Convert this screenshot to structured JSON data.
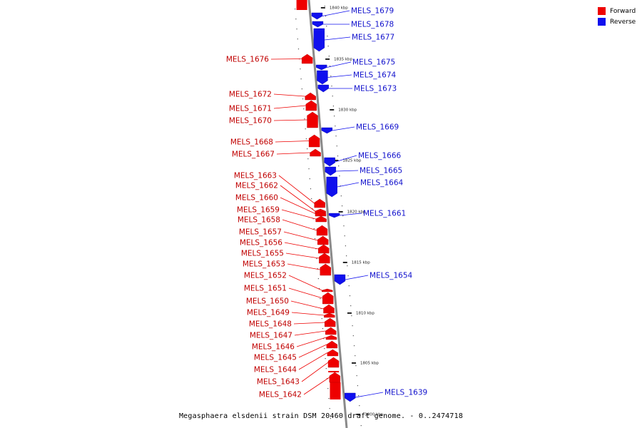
{
  "legend": {
    "forward_label": "Forward",
    "reverse_label": "Reverse",
    "forward_color": "#ee0000",
    "reverse_color": "#1010ee"
  },
  "caption": "Megasphaera elsdenii strain DSM 20460 draft genome. - 0..2474718",
  "ticks": [
    {
      "label": "1840 kbp"
    },
    {
      "label": "1835 kbp"
    },
    {
      "label": "1830 kbp"
    },
    {
      "label": "1825 kbp"
    },
    {
      "label": "1820 kbp"
    },
    {
      "label": "1815 kbp"
    },
    {
      "label": "1810 kbp"
    },
    {
      "label": "1805 kbp"
    },
    {
      "label": "1800 kbp"
    }
  ],
  "genes": [
    {
      "name": "MELS_1679",
      "strand": "reverse"
    },
    {
      "name": "MELS_1678",
      "strand": "reverse"
    },
    {
      "name": "MELS_1677",
      "strand": "reverse"
    },
    {
      "name": "MELS_1676",
      "strand": "forward"
    },
    {
      "name": "MELS_1675",
      "strand": "reverse"
    },
    {
      "name": "MELS_1674",
      "strand": "reverse"
    },
    {
      "name": "MELS_1673",
      "strand": "reverse"
    },
    {
      "name": "MELS_1672",
      "strand": "forward"
    },
    {
      "name": "MELS_1671",
      "strand": "forward"
    },
    {
      "name": "MELS_1670",
      "strand": "forward"
    },
    {
      "name": "MELS_1669",
      "strand": "reverse"
    },
    {
      "name": "MELS_1668",
      "strand": "forward"
    },
    {
      "name": "MELS_1667",
      "strand": "forward"
    },
    {
      "name": "MELS_1666",
      "strand": "reverse"
    },
    {
      "name": "MELS_1665",
      "strand": "reverse"
    },
    {
      "name": "MELS_1664",
      "strand": "reverse"
    },
    {
      "name": "MELS_1663",
      "strand": "forward"
    },
    {
      "name": "MELS_1662",
      "strand": "forward"
    },
    {
      "name": "MELS_1661",
      "strand": "reverse"
    },
    {
      "name": "MELS_1660",
      "strand": "forward"
    },
    {
      "name": "MELS_1659",
      "strand": "forward"
    },
    {
      "name": "MELS_1658",
      "strand": "forward"
    },
    {
      "name": "MELS_1657",
      "strand": "forward"
    },
    {
      "name": "MELS_1656",
      "strand": "forward"
    },
    {
      "name": "MELS_1655",
      "strand": "forward"
    },
    {
      "name": "MELS_1654",
      "strand": "reverse"
    },
    {
      "name": "MELS_1653",
      "strand": "forward"
    },
    {
      "name": "MELS_1652",
      "strand": "forward"
    },
    {
      "name": "MELS_1651",
      "strand": "forward"
    },
    {
      "name": "MELS_1650",
      "strand": "forward"
    },
    {
      "name": "MELS_1649",
      "strand": "forward"
    },
    {
      "name": "MELS_1648",
      "strand": "forward"
    },
    {
      "name": "MELS_1647",
      "strand": "forward"
    },
    {
      "name": "MELS_1646",
      "strand": "forward"
    },
    {
      "name": "MELS_1645",
      "strand": "forward"
    },
    {
      "name": "MELS_1644",
      "strand": "forward"
    },
    {
      "name": "MELS_1643",
      "strand": "forward"
    },
    {
      "name": "MELS_1642",
      "strand": "forward"
    },
    {
      "name": "MELS_1639",
      "strand": "reverse"
    }
  ]
}
